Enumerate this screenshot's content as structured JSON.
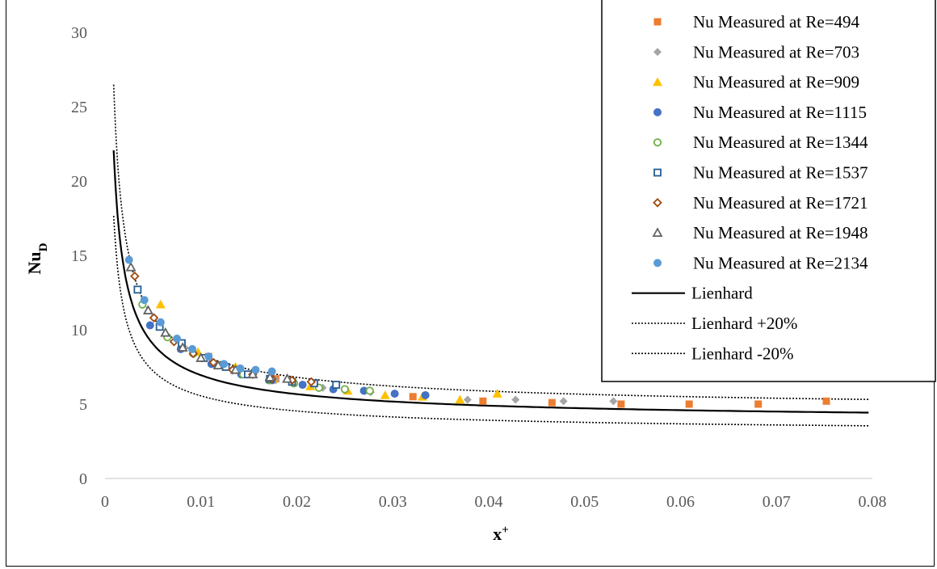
{
  "chart_data": {
    "type": "scatter",
    "xlabel": "x",
    "xlabel_sup": "+",
    "ylabel": "Nu",
    "ylabel_sub": "D",
    "xlim": [
      0,
      0.08
    ],
    "ylim": [
      0,
      30
    ],
    "x_ticks": [
      "0",
      "0.01",
      "0.02",
      "0.03",
      "0.04",
      "0.05",
      "0.06",
      "0.07",
      "0.08"
    ],
    "y_ticks": [
      "0",
      "5",
      "10",
      "15",
      "20",
      "25",
      "30"
    ],
    "grid": false,
    "legend_position": "top-right",
    "series": [
      {
        "name": "Nu Measured at Re=494",
        "marker": "square",
        "color": "#ED7D31",
        "points": [
          [
            0.0108,
            8.2
          ],
          [
            0.0178,
            6.7
          ],
          [
            0.0321,
            5.5
          ],
          [
            0.0394,
            5.2
          ],
          [
            0.0466,
            5.1
          ],
          [
            0.0538,
            5.0
          ],
          [
            0.0609,
            5.0
          ],
          [
            0.0681,
            5.0
          ],
          [
            0.0752,
            5.2
          ]
        ]
      },
      {
        "name": "Nu Measured at Re=703",
        "marker": "diamond",
        "color": "#A5A5A5",
        "points": [
          [
            0.0083,
            8.8
          ],
          [
            0.0114,
            7.7
          ],
          [
            0.0142,
            7.1
          ],
          [
            0.0178,
            6.6
          ],
          [
            0.0227,
            6.1
          ],
          [
            0.0277,
            5.8
          ],
          [
            0.0378,
            5.3
          ],
          [
            0.0428,
            5.3
          ],
          [
            0.0478,
            5.2
          ],
          [
            0.053,
            5.2
          ]
        ]
      },
      {
        "name": "Nu Measured at Re=909",
        "marker": "triangle",
        "color": "#FFC000",
        "points": [
          [
            0.0058,
            11.7
          ],
          [
            0.0097,
            8.5
          ],
          [
            0.0136,
            7.5
          ],
          [
            0.0175,
            6.7
          ],
          [
            0.0214,
            6.2
          ],
          [
            0.0253,
            5.9
          ],
          [
            0.0292,
            5.6
          ],
          [
            0.0331,
            5.5
          ],
          [
            0.037,
            5.3
          ],
          [
            0.0409,
            5.7
          ]
        ]
      },
      {
        "name": "Nu Measured at Re=1115",
        "marker": "circle",
        "color": "#4472C4",
        "points": [
          [
            0.0047,
            10.3
          ],
          [
            0.0079,
            8.7
          ],
          [
            0.0111,
            7.7
          ],
          [
            0.0142,
            7.0
          ],
          [
            0.0174,
            6.6
          ],
          [
            0.0206,
            6.3
          ],
          [
            0.0238,
            6.0
          ],
          [
            0.027,
            5.9
          ],
          [
            0.0302,
            5.7
          ],
          [
            0.0334,
            5.6
          ]
        ]
      },
      {
        "name": "Nu Measured at Re=1344",
        "marker": "circle-open",
        "color": "#70AD47",
        "points": [
          [
            0.0039,
            11.7
          ],
          [
            0.0065,
            9.5
          ],
          [
            0.0092,
            8.4
          ],
          [
            0.0118,
            7.6
          ],
          [
            0.0144,
            7.0
          ],
          [
            0.0171,
            6.6
          ],
          [
            0.0197,
            6.4
          ],
          [
            0.0223,
            6.1
          ],
          [
            0.025,
            6.0
          ],
          [
            0.0276,
            5.9
          ]
        ]
      },
      {
        "name": "Nu Measured at Re=1537",
        "marker": "square-open",
        "color": "#255E91",
        "points": [
          [
            0.0034,
            12.7
          ],
          [
            0.0057,
            10.2
          ],
          [
            0.008,
            9.1
          ],
          [
            0.0103,
            8.1
          ],
          [
            0.0126,
            7.5
          ],
          [
            0.0149,
            7.0
          ],
          [
            0.0172,
            6.7
          ],
          [
            0.0195,
            6.5
          ],
          [
            0.0218,
            6.4
          ],
          [
            0.0241,
            6.3
          ]
        ]
      },
      {
        "name": "Nu Measured at Re=1721",
        "marker": "diamond-open",
        "color": "#9E480E",
        "points": [
          [
            0.0031,
            13.6
          ],
          [
            0.0051,
            10.8
          ],
          [
            0.0072,
            9.2
          ],
          [
            0.0092,
            8.4
          ],
          [
            0.0113,
            7.8
          ],
          [
            0.0133,
            7.3
          ],
          [
            0.0154,
            7.0
          ],
          [
            0.0174,
            6.7
          ],
          [
            0.0195,
            6.6
          ],
          [
            0.0215,
            6.5
          ]
        ]
      },
      {
        "name": "Nu Measured at Re=1948",
        "marker": "triangle-open",
        "color": "#636363",
        "points": [
          [
            0.0027,
            14.2
          ],
          [
            0.0045,
            11.3
          ],
          [
            0.0063,
            9.8
          ],
          [
            0.0081,
            8.8
          ],
          [
            0.01,
            8.1
          ],
          [
            0.0118,
            7.6
          ],
          [
            0.0136,
            7.3
          ],
          [
            0.0154,
            7.0
          ],
          [
            0.0172,
            6.8
          ],
          [
            0.019,
            6.7
          ]
        ]
      },
      {
        "name": "Nu Measured at Re=2134",
        "marker": "circle",
        "color": "#5B9BD5",
        "points": [
          [
            0.0025,
            14.7
          ],
          [
            0.0041,
            12.0
          ],
          [
            0.0058,
            10.5
          ],
          [
            0.0075,
            9.4
          ],
          [
            0.0091,
            8.7
          ],
          [
            0.0108,
            8.2
          ],
          [
            0.0124,
            7.7
          ],
          [
            0.0141,
            7.4
          ],
          [
            0.0157,
            7.3
          ],
          [
            0.0174,
            7.2
          ]
        ]
      },
      {
        "name": "Lienhard",
        "line": "solid",
        "color": "#000000"
      },
      {
        "name": "Lienhard +20%",
        "line": "dotted",
        "color": "#000000"
      },
      {
        "name": "Lienhard -20%",
        "line": "dotted",
        "color": "#000000"
      }
    ]
  }
}
